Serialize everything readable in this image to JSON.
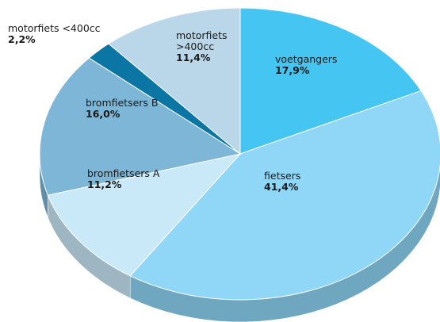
{
  "chart_data": {
    "type": "pie",
    "categories": [
      "voetgangers",
      "fietsers",
      "bromfietsers A",
      "bromfietsers B",
      "motorfiets <400cc",
      "motorfiets >400cc"
    ],
    "values": [
      17.9,
      41.4,
      11.2,
      16.0,
      2.2,
      11.4
    ],
    "value_labels": [
      "17,9%",
      "41,4%",
      "11,2%",
      "16,0%",
      "2,2%",
      "11,4%"
    ],
    "colors": [
      "#45c5f1",
      "#90d6f6",
      "#c9e9f9",
      "#7db6d6",
      "#0b76a3",
      "#b9d7e9"
    ]
  }
}
